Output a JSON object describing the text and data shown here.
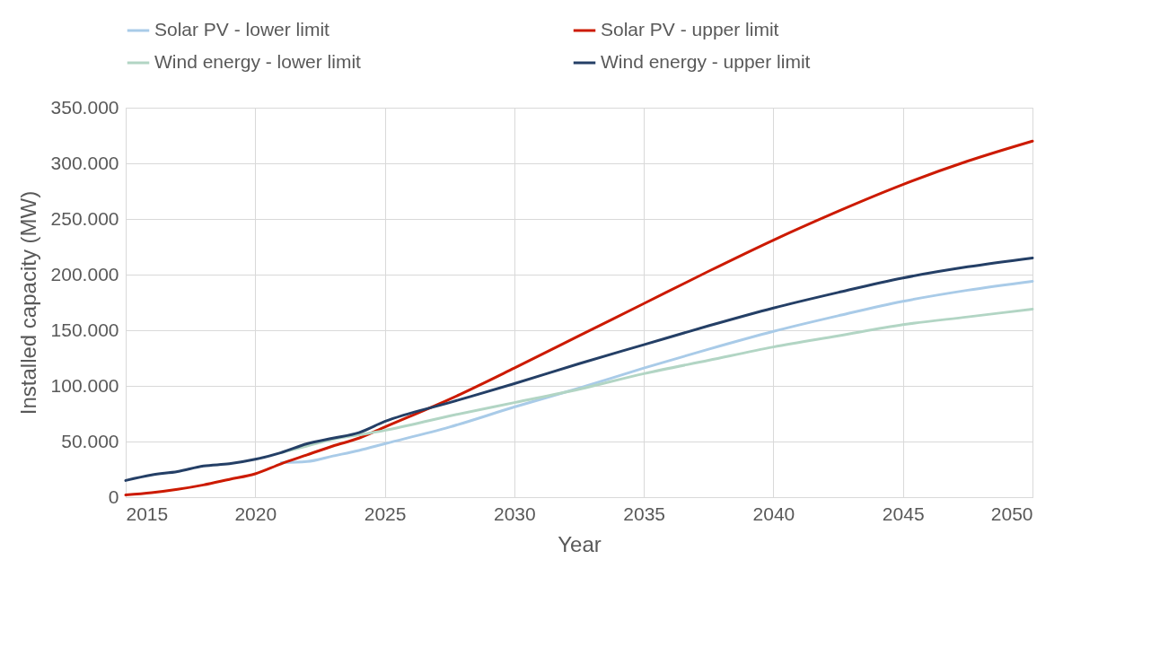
{
  "chart_data": {
    "type": "line",
    "xlabel": "Year",
    "ylabel": "Installed capacity (MW)",
    "legend": "top",
    "grid": true,
    "marker": "none",
    "line_style": "solid",
    "xlim": [
      2015,
      2050
    ],
    "xticks": [
      2015,
      2020,
      2025,
      2030,
      2035,
      2040,
      2045,
      2050
    ],
    "ylim": [
      0,
      350000
    ],
    "yticks": [
      {
        "value": 0,
        "label": "0"
      },
      {
        "value": 50000,
        "label": "50.000"
      },
      {
        "value": 100000,
        "label": "100.000"
      },
      {
        "value": 150000,
        "label": "150.000"
      },
      {
        "value": 200000,
        "label": "200.000"
      },
      {
        "value": 250000,
        "label": "250.000"
      },
      {
        "value": 300000,
        "label": "300.000"
      },
      {
        "value": 350000,
        "label": "350.000"
      }
    ],
    "series": [
      {
        "name": "Solar PV - lower limit",
        "color": "#a9cbe8",
        "x": [
          2021,
          2022,
          2023,
          2024,
          2025,
          2027.5,
          2030,
          2032.5,
          2035,
          2037.5,
          2040,
          2042.5,
          2045,
          2047.5,
          2050
        ],
        "values": [
          31000,
          32000,
          37000,
          42000,
          48000,
          63000,
          81000,
          98000,
          116000,
          133000,
          149000,
          163000,
          176000,
          186000,
          194000
        ]
      },
      {
        "name": "Solar PV - upper limit",
        "color": "#cc1a00",
        "x": [
          2015,
          2016,
          2017,
          2018,
          2019,
          2020,
          2021,
          2022,
          2023,
          2024,
          2025,
          2027.5,
          2030,
          2032.5,
          2035,
          2037.5,
          2040,
          2042.5,
          2045,
          2047.5,
          2050
        ],
        "values": [
          2000,
          4000,
          7000,
          11000,
          16000,
          21000,
          30000,
          38000,
          46000,
          53000,
          63000,
          88000,
          116000,
          145000,
          174000,
          203000,
          231000,
          257000,
          281000,
          302000,
          320000
        ]
      },
      {
        "name": "Wind energy - lower limit",
        "color": "#b2d5c4",
        "x": [
          2021,
          2022,
          2023,
          2024,
          2025,
          2027.5,
          2030,
          2032.5,
          2035,
          2037.5,
          2040,
          2042.5,
          2045,
          2047.5,
          2050
        ],
        "values": [
          40000,
          46000,
          52000,
          56000,
          60000,
          73000,
          85000,
          97000,
          111000,
          123000,
          135000,
          145000,
          155000,
          162000,
          169000
        ]
      },
      {
        "name": "Wind energy - upper limit",
        "color": "#243f66",
        "x": [
          2015,
          2016,
          2017,
          2018,
          2019,
          2020,
          2021,
          2022,
          2023,
          2024,
          2025,
          2027.5,
          2030,
          2032.5,
          2035,
          2037.5,
          2040,
          2042.5,
          2045,
          2047.5,
          2050
        ],
        "values": [
          15000,
          20000,
          23000,
          28000,
          30000,
          34000,
          40000,
          48000,
          53000,
          58000,
          68000,
          85000,
          102000,
          120000,
          137000,
          154000,
          170000,
          184000,
          197000,
          207000,
          215000
        ]
      }
    ]
  }
}
